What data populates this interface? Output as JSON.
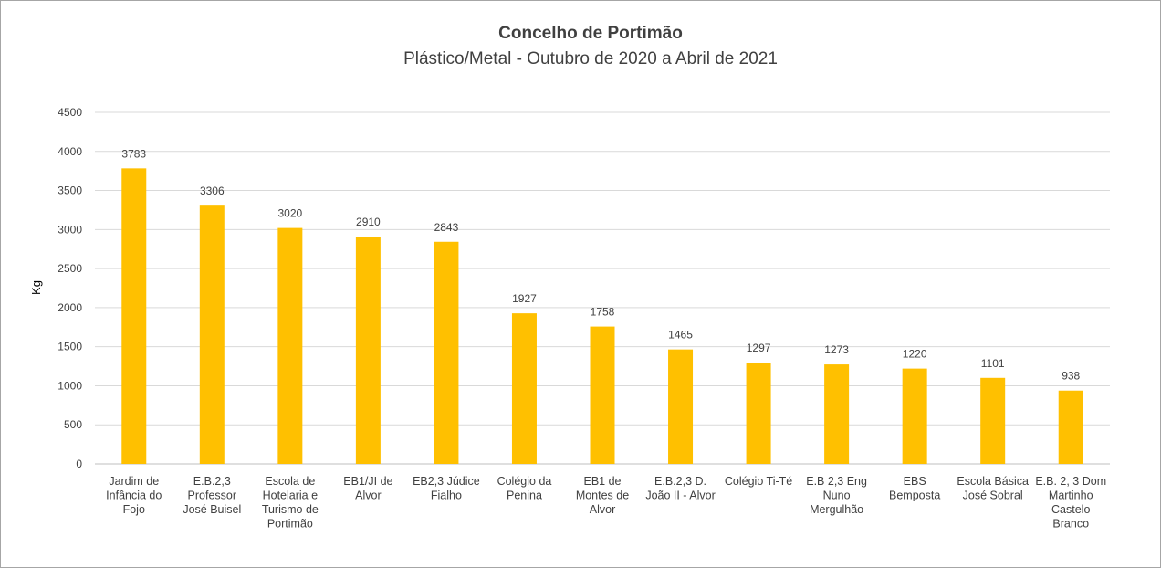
{
  "chart_data": {
    "type": "bar",
    "title": "Concelho de Portimão",
    "subtitle": "Plástico/Metal - Outubro de 2020 a Abril de 2021",
    "xlabel": "",
    "ylabel": "Kg",
    "ylim": [
      0,
      4500
    ],
    "yticks": [
      0,
      500,
      1000,
      1500,
      2000,
      2500,
      3000,
      3500,
      4000,
      4500
    ],
    "grid": true,
    "legend": "none",
    "bar_color": "#ffc000",
    "categories": [
      [
        "Jardim de",
        "Infância do",
        "Fojo"
      ],
      [
        "E.B.2,3",
        "Professor",
        "José Buisel"
      ],
      [
        "Escola de",
        "Hotelaria e",
        "Turismo de",
        "Portimão"
      ],
      [
        "EB1/JI de",
        "Alvor"
      ],
      [
        "EB2,3 Júdice",
        "Fialho"
      ],
      [
        "Colégio da",
        "Penina"
      ],
      [
        "EB1 de",
        "Montes de",
        "Alvor"
      ],
      [
        "E.B.2,3 D.",
        "João II - Alvor"
      ],
      [
        "Colégio Ti-Té"
      ],
      [
        "E.B 2,3 Eng",
        "Nuno",
        "Mergulhão"
      ],
      [
        "EBS",
        "Bemposta"
      ],
      [
        "Escola Básica",
        "José Sobral"
      ],
      [
        "E.B. 2, 3 Dom",
        "Martinho",
        "Castelo",
        "Branco"
      ]
    ],
    "values": [
      3783,
      3306,
      3020,
      2910,
      2843,
      1927,
      1758,
      1465,
      1297,
      1273,
      1220,
      1101,
      938
    ]
  }
}
